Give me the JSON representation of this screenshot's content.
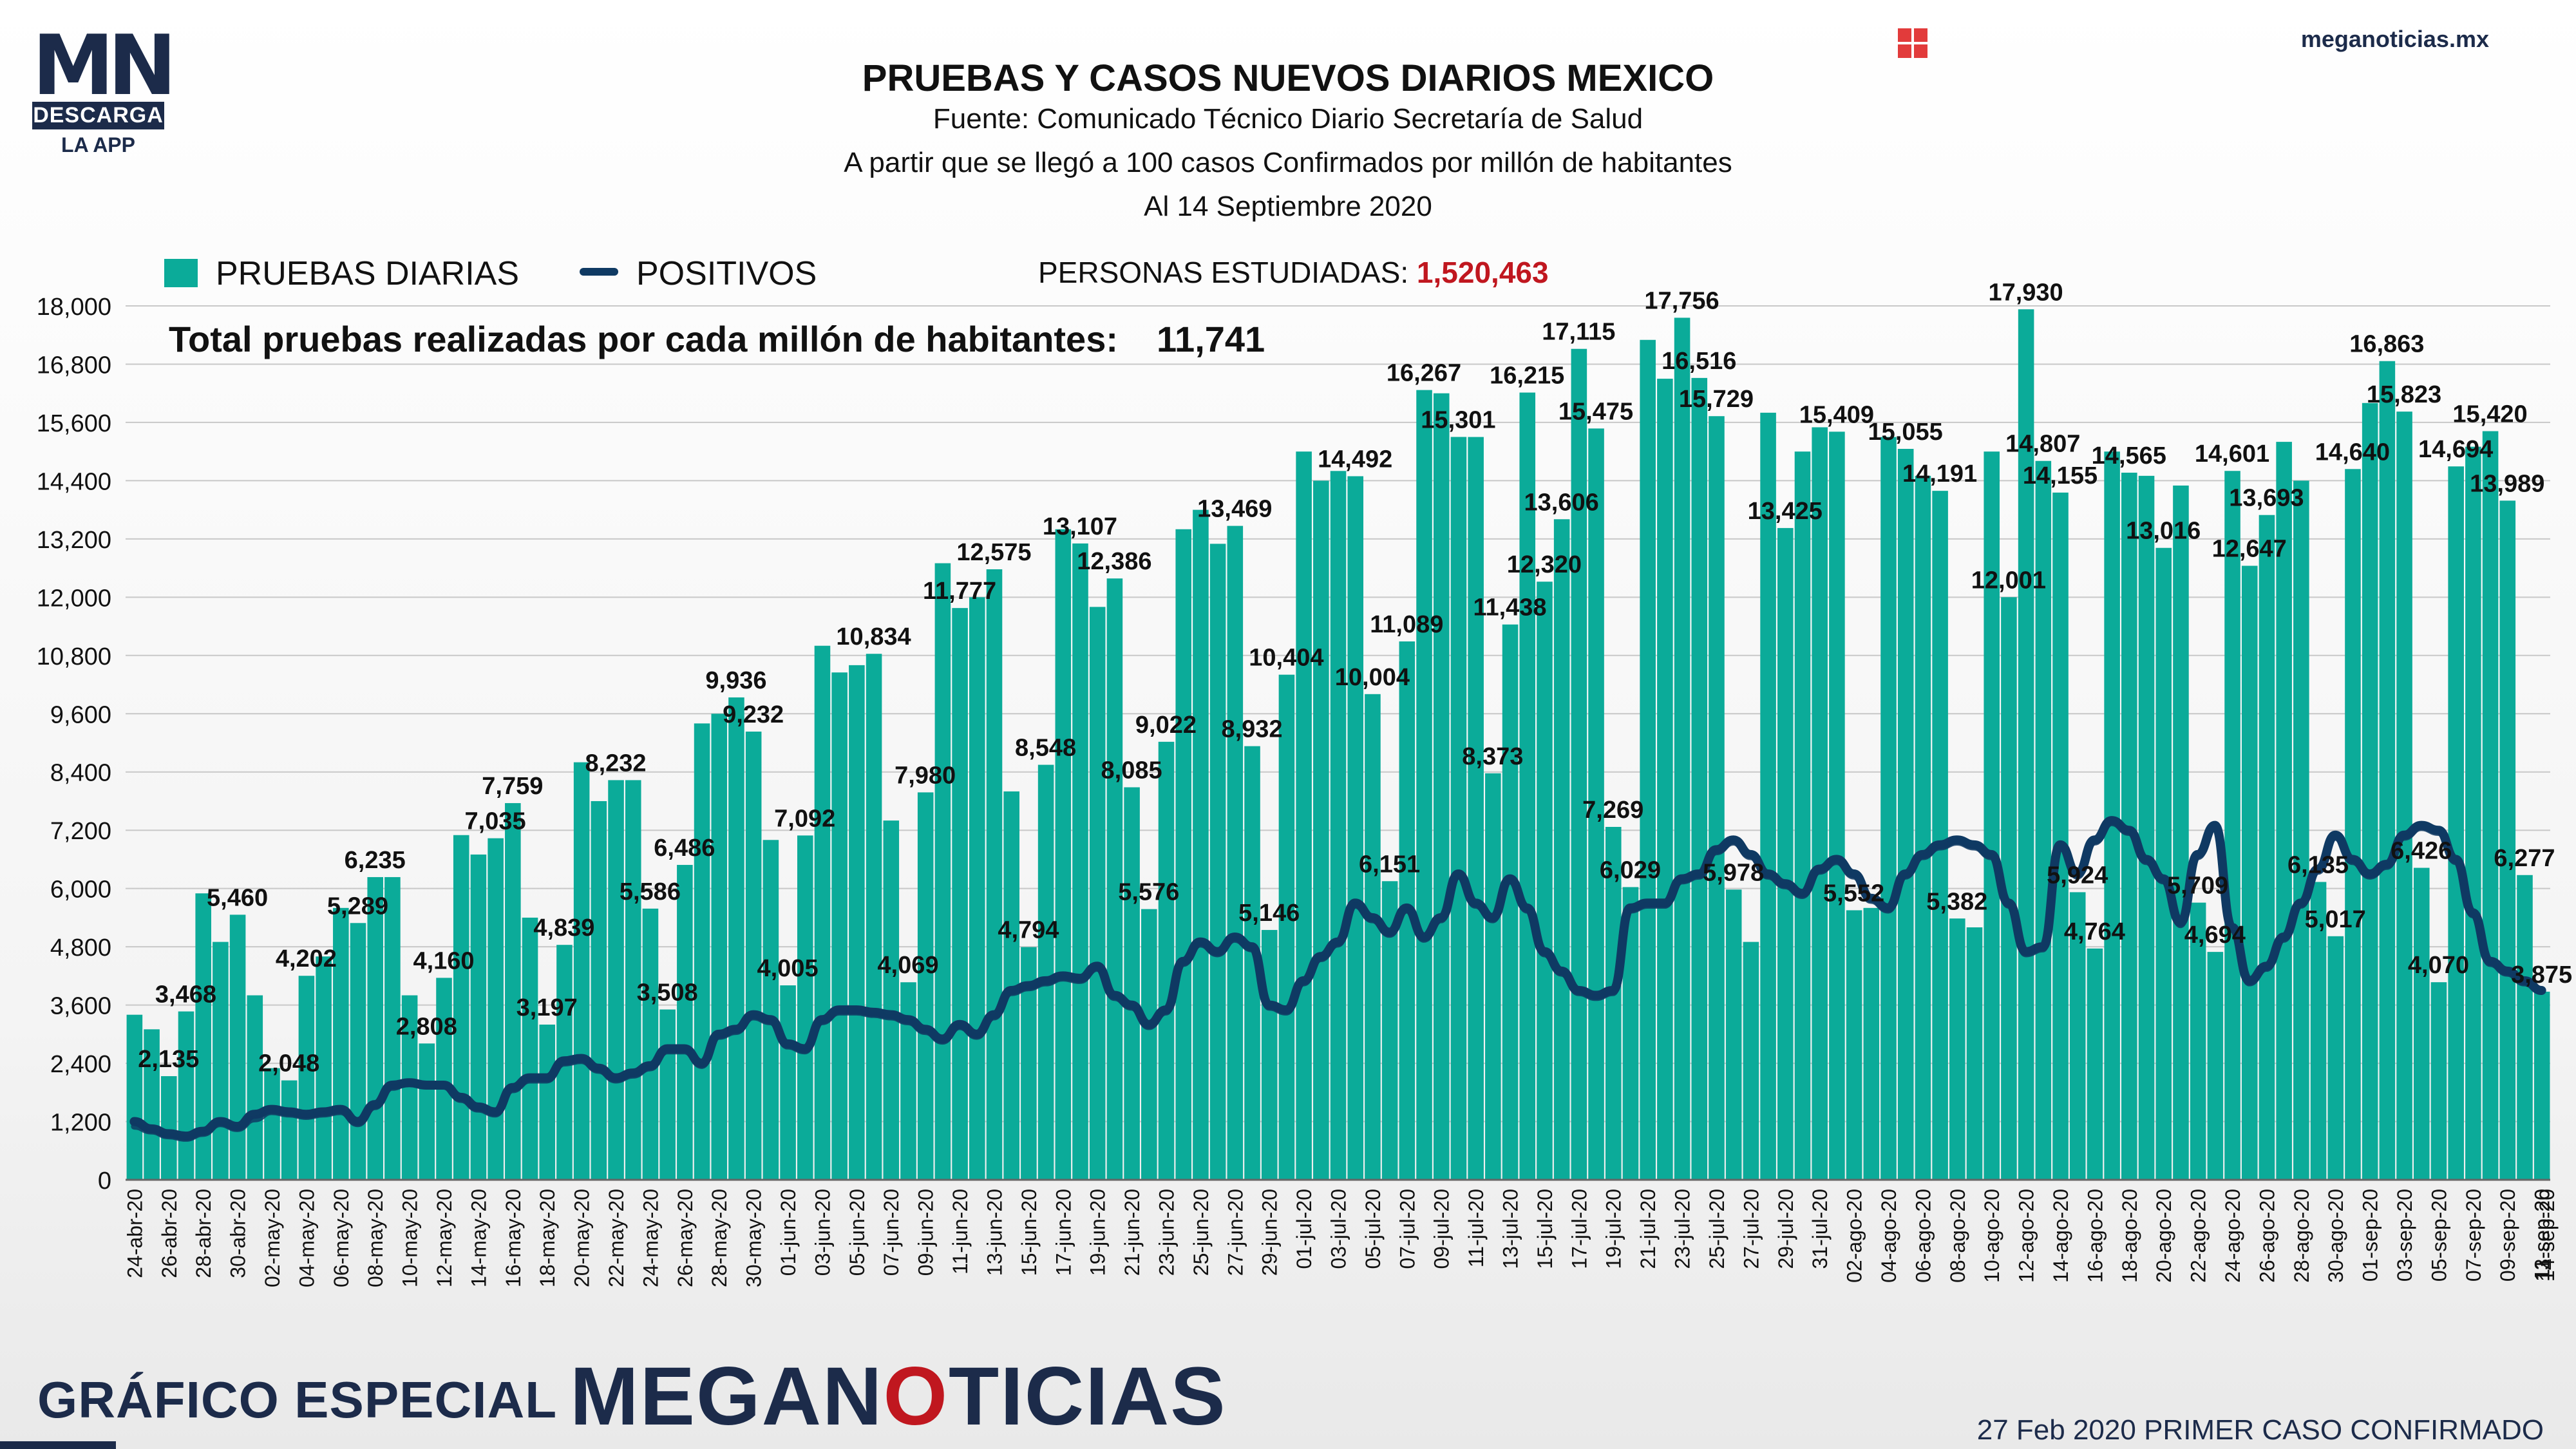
{
  "header": {
    "logo_text": "MN",
    "logo_badge": "DESCARGA",
    "logo_sub": "LA APP",
    "site": "meganoticias.mx",
    "site_icon": "grid-icon"
  },
  "titles": {
    "main": "PRUEBAS Y CASOS NUEVOS DIARIOS MEXICO",
    "source": "Fuente: Comunicado Técnico Diario Secretaría de Salud",
    "note": "A partir que se llegó a 100 casos Confirmados por millón de habitantes",
    "date": "Al 14 Septiembre 2020"
  },
  "legend": {
    "bars": "PRUEBAS DIARIAS",
    "line": "POSITIVOS",
    "persons_label": "PERSONAS ESTUDIADAS:",
    "persons_value": "1,520,463"
  },
  "total": {
    "label": "Total pruebas realizadas por cada millón de habitantes:",
    "value": "11,741"
  },
  "footer": {
    "left": "GRÁFICO ESPECIAL",
    "brand_1": "MEGAN",
    "brand_2": "O",
    "brand_3": "TICIAS",
    "right": "27 Feb 2020 PRIMER CASO CONFIRMADO"
  },
  "colors": {
    "bars": "#0bab99",
    "line": "#0f3a63",
    "accent": "#c0171f"
  },
  "chart_data": {
    "type": "bar",
    "series_line": "POSITIVOS",
    "ylim": [
      0,
      18000
    ],
    "yticks": [
      0,
      1200,
      2400,
      3600,
      4800,
      6000,
      7200,
      8400,
      9600,
      10800,
      12000,
      13200,
      14400,
      15600,
      16800,
      18000
    ],
    "ytick_labels": [
      "0",
      "1,200",
      "2,400",
      "3,600",
      "4,800",
      "6,000",
      "7,200",
      "8,400",
      "9,600",
      "10,800",
      "12,000",
      "13,200",
      "14,400",
      "15,600",
      "16,800",
      "18,000"
    ],
    "x_labels": [
      "24-abr-20",
      "26-abr-20",
      "28-abr-20",
      "30-abr-20",
      "02-may-20",
      "04-may-20",
      "06-may-20",
      "08-may-20",
      "10-may-20",
      "12-may-20",
      "14-may-20",
      "16-may-20",
      "18-may-20",
      "20-may-20",
      "22-may-20",
      "24-may-20",
      "26-may-20",
      "28-may-20",
      "30-may-20",
      "01-jun-20",
      "03-jun-20",
      "05-jun-20",
      "07-jun-20",
      "09-jun-20",
      "11-jun-20",
      "13-jun-20",
      "15-jun-20",
      "17-jun-20",
      "19-jun-20",
      "21-jun-20",
      "23-jun-20",
      "25-jun-20",
      "27-jun-20",
      "29-jun-20",
      "01-jul-20",
      "03-jul-20",
      "05-jul-20",
      "07-jul-20",
      "09-jul-20",
      "11-jul-20",
      "13-jul-20",
      "15-jul-20",
      "17-jul-20",
      "19-jul-20",
      "21-jul-20",
      "23-jul-20",
      "25-jul-20",
      "27-jul-20",
      "29-jul-20",
      "31-jul-20",
      "02-ago-20",
      "04-ago-20",
      "06-ago-20",
      "08-ago-20",
      "10-ago-20",
      "12-ago-20",
      "14-ago-20",
      "16-ago-20",
      "18-ago-20",
      "20-ago-20",
      "22-ago-20",
      "24-ago-20",
      "26-ago-20",
      "28-ago-20",
      "30-ago-20",
      "01-sep-20",
      "03-sep-20",
      "05-sep-20",
      "07-sep-20",
      "09-sep-20",
      "11-sep-20",
      "13-sep-20",
      "14-sep-20"
    ],
    "pruebas": [
      3400,
      3100,
      2135,
      3468,
      5900,
      4900,
      5460,
      3800,
      2300,
      2048,
      4202,
      4600,
      5600,
      5289,
      6235,
      6235,
      3800,
      2808,
      4160,
      7100,
      6700,
      7035,
      7759,
      5400,
      3197,
      4839,
      8600,
      7800,
      8232,
      8232,
      5586,
      3508,
      6486,
      9400,
      9600,
      9936,
      9232,
      7000,
      4005,
      7092,
      11000,
      10450,
      10600,
      10834,
      7400,
      4069,
      7980,
      12700,
      11777,
      12000,
      12575,
      8000,
      4794,
      8548,
      13400,
      13107,
      11800,
      12386,
      8085,
      5576,
      9022,
      13400,
      13800,
      13100,
      13469,
      8932,
      5146,
      10404,
      15000,
      14400,
      14600,
      14492,
      10004,
      6151,
      11089,
      16267,
      16200,
      15301,
      15300,
      8373,
      11438,
      16215,
      12320,
      13606,
      17115,
      15475,
      7269,
      6029,
      17300,
      16500,
      17756,
      16516,
      15729,
      5978,
      4900,
      15800,
      13425,
      15000,
      15500,
      15409,
      5552,
      5600,
      15300,
      15055,
      14500,
      14191,
      5382,
      5200,
      15000,
      12001,
      17930,
      14807,
      14155,
      5924,
      4764,
      15000,
      14565,
      14500,
      13016,
      14300,
      5709,
      4694,
      14601,
      12647,
      13693,
      15200,
      14400,
      6135,
      5017,
      14640,
      16000,
      16863,
      15823,
      6426,
      4070,
      14694,
      15100,
      15420,
      13989,
      6277,
      3875
    ],
    "bar_labels": [
      [
        "2,135",
        2
      ],
      [
        "3,468",
        3
      ],
      [
        "5,460",
        6
      ],
      [
        "2,048",
        9
      ],
      [
        "4,202",
        10
      ],
      [
        "5,289",
        13
      ],
      [
        "6,235",
        14
      ],
      [
        "2,808",
        17
      ],
      [
        "4,160",
        18
      ],
      [
        "7,035",
        21
      ],
      [
        "7,759",
        22
      ],
      [
        "3,197",
        24
      ],
      [
        "4,839",
        25
      ],
      [
        "8,232",
        28
      ],
      [
        "5,586",
        30
      ],
      [
        "3,508",
        31
      ],
      [
        "6,486",
        32
      ],
      [
        "9,936",
        35
      ],
      [
        "9,232",
        36
      ],
      [
        "4,005",
        38
      ],
      [
        "7,092",
        39
      ],
      [
        "10,834",
        43
      ],
      [
        "4,069",
        45
      ],
      [
        "7,980",
        46
      ],
      [
        "11,777",
        48
      ],
      [
        "12,575",
        50
      ],
      [
        "4,794",
        52
      ],
      [
        "8,548",
        53
      ],
      [
        "13,107",
        55
      ],
      [
        "12,386",
        57
      ],
      [
        "8,085",
        58
      ],
      [
        "5,576",
        59
      ],
      [
        "9,022",
        60
      ],
      [
        "13,469",
        64
      ],
      [
        "8,932",
        65
      ],
      [
        "5,146",
        66
      ],
      [
        "10,404",
        67
      ],
      [
        "14,492",
        71
      ],
      [
        "10,004",
        72
      ],
      [
        "6,151",
        73
      ],
      [
        "11,089",
        74
      ],
      [
        "16,267",
        75
      ],
      [
        "15,301",
        77
      ],
      [
        "8,373",
        79
      ],
      [
        "11,438",
        80
      ],
      [
        "16,215",
        81
      ],
      [
        "12,320",
        82
      ],
      [
        "13,606",
        83
      ],
      [
        "17,115",
        84
      ],
      [
        "15,475",
        85
      ],
      [
        "7,269",
        86
      ],
      [
        "6,029",
        87
      ],
      [
        "17,756",
        90
      ],
      [
        "16,516",
        91
      ],
      [
        "15,729",
        92
      ],
      [
        "5,978",
        93
      ],
      [
        "13,425",
        96
      ],
      [
        "15,409",
        99
      ],
      [
        "5,552",
        100
      ],
      [
        "15,055",
        103
      ],
      [
        "14,191",
        105
      ],
      [
        "5,382",
        106
      ],
      [
        "12,001",
        109
      ],
      [
        "17,930",
        110
      ],
      [
        "14,807",
        111
      ],
      [
        "14,155",
        112
      ],
      [
        "5,924",
        113
      ],
      [
        "4,764",
        114
      ],
      [
        "14,565",
        116
      ],
      [
        "13,016",
        118
      ],
      [
        "5,709",
        120
      ],
      [
        "4,694",
        121
      ],
      [
        "14,601",
        122
      ],
      [
        "12,647",
        123
      ],
      [
        "13,693",
        124
      ],
      [
        "6,135",
        127
      ],
      [
        "5,017",
        128
      ],
      [
        "14,640",
        129
      ],
      [
        "16,863",
        131
      ],
      [
        "15,823",
        132
      ],
      [
        "6,426",
        133
      ],
      [
        "4,070",
        134
      ],
      [
        "14,694",
        135
      ],
      [
        "15,420",
        137
      ],
      [
        "13,989",
        138
      ],
      [
        "6,277",
        139
      ],
      [
        "3,875",
        140
      ]
    ],
    "positivos": [
      1200,
      1050,
      950,
      900,
      1000,
      1200,
      1100,
      1350,
      1450,
      1400,
      1350,
      1400,
      1450,
      1200,
      1550,
      1950,
      2000,
      1950,
      1950,
      1700,
      1500,
      1400,
      1900,
      2100,
      2100,
      2450,
      2500,
      2300,
      2100,
      2200,
      2350,
      2700,
      2700,
      2400,
      3000,
      3100,
      3400,
      3300,
      2800,
      2700,
      3300,
      3500,
      3500,
      3450,
      3400,
      3300,
      3100,
      2900,
      3200,
      3000,
      3400,
      3900,
      4000,
      4100,
      4200,
      4150,
      4400,
      3800,
      3600,
      3200,
      3500,
      4500,
      4900,
      4700,
      5000,
      4800,
      3600,
      3500,
      4100,
      4600,
      4900,
      5700,
      5400,
      5100,
      5600,
      5000,
      5400,
      6300,
      5700,
      5400,
      6200,
      5600,
      4700,
      4300,
      3900,
      3800,
      3900,
      5600,
      5700,
      5700,
      6200,
      6300,
      6800,
      7000,
      6700,
      6300,
      6100,
      5900,
      6400,
      6600,
      6300,
      5800,
      5600,
      6300,
      6700,
      6900,
      7000,
      6900,
      6700,
      5700,
      4700,
      4800,
      6900,
      6300,
      7000,
      7400,
      7200,
      6600,
      6200,
      5300,
      6700,
      7300,
      5200,
      4100,
      4400,
      5000,
      5700,
      6400,
      7100,
      6600,
      6300,
      6500,
      7100,
      7300,
      7200,
      6600,
      5500,
      4500,
      4300,
      4100,
      3900
    ],
    "positivos_2": [
      1100,
      1000,
      900,
      850,
      950,
      1150,
      1050,
      1250,
      1400,
      1350,
      1300,
      1350,
      1400,
      1150,
      1500,
      1900,
      2000,
      1950,
      1950,
      1650,
      1450,
      1350,
      1850,
      2050,
      2050,
      2400,
      2450,
      2250,
      2050,
      2150,
      2300,
      2650,
      2650,
      2350,
      2950,
      3050,
      3350,
      3250,
      2750,
      2650,
      3250,
      3450,
      3450,
      3400,
      3350,
      3250,
      3050,
      2850,
      3150,
      2950,
      3350,
      3850,
      3950,
      4050,
      4150,
      4100,
      4350,
      3750,
      3550,
      3150,
      3450,
      4450,
      4850,
      4650,
      4950,
      4750,
      3550,
      3450,
      4050,
      4550,
      4850,
      5650,
      5350,
      5050,
      5550,
      4950,
      5350,
      6250,
      5650,
      5350,
      6150,
      5550,
      4650,
      4250,
      3850,
      3750,
      3850,
      5550,
      5650,
      5650,
      6150,
      6250,
      6750,
      6950,
      6650,
      6250,
      6050,
      5850,
      6350,
      6550,
      6250,
      5750,
      5550,
      6250,
      6650,
      6850,
      6950,
      6850,
      6650,
      5650,
      4650,
      4750,
      6850,
      6250,
      6950,
      7350,
      7150,
      6550,
      6150,
      5250,
      6650,
      7250,
      5150,
      4050,
      4350,
      4950,
      5650,
      6350,
      7050,
      6550,
      6250,
      6450,
      7050,
      7250,
      7150,
      6550,
      5450,
      4450,
      4250,
      4050,
      3875
    ]
  }
}
